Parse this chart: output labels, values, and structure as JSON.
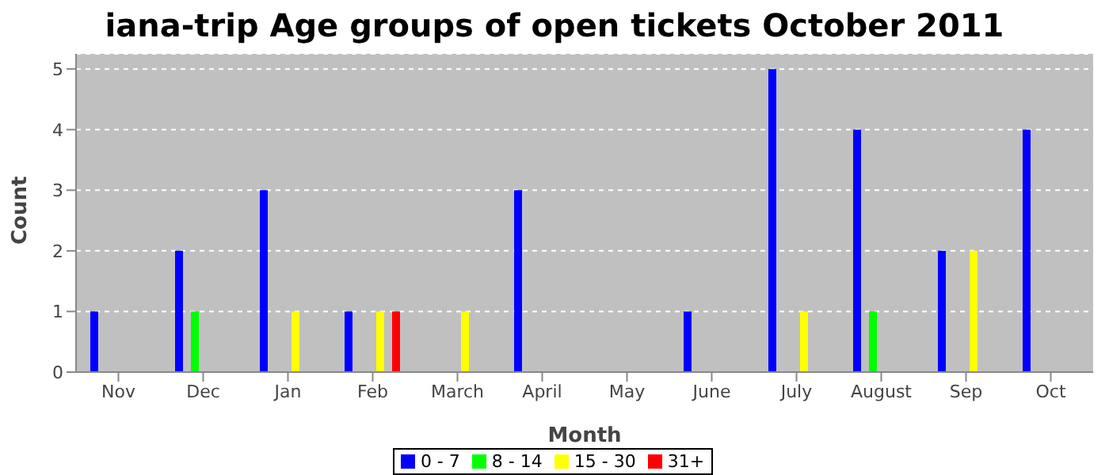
{
  "chart_data": {
    "type": "bar",
    "title": "iana-trip Age groups of open tickets October 2011",
    "xlabel": "Month",
    "ylabel": "Count",
    "categories": [
      "Nov",
      "Dec",
      "Jan",
      "Feb",
      "March",
      "April",
      "May",
      "June",
      "July",
      "August",
      "Sep",
      "Oct"
    ],
    "series": [
      {
        "name": "0 - 7",
        "color": "#0000ff",
        "values": [
          1,
          2,
          3,
          1,
          0,
          3,
          0,
          1,
          5,
          4,
          2,
          4
        ]
      },
      {
        "name": "8 - 14",
        "color": "#00ff00",
        "values": [
          0,
          1,
          0,
          0,
          0,
          0,
          0,
          0,
          0,
          1,
          0,
          0
        ]
      },
      {
        "name": "15 - 30",
        "color": "#ffff00",
        "values": [
          0,
          0,
          1,
          1,
          1,
          0,
          0,
          0,
          1,
          0,
          2,
          0
        ]
      },
      {
        "name": "31+",
        "color": "#ff0000",
        "values": [
          0,
          0,
          0,
          1,
          0,
          0,
          0,
          0,
          0,
          0,
          0,
          0
        ]
      }
    ],
    "ylim": [
      0,
      5.25
    ],
    "yticks": [
      0,
      1,
      2,
      3,
      4,
      5
    ],
    "grid": "y",
    "legend": "bottom"
  }
}
